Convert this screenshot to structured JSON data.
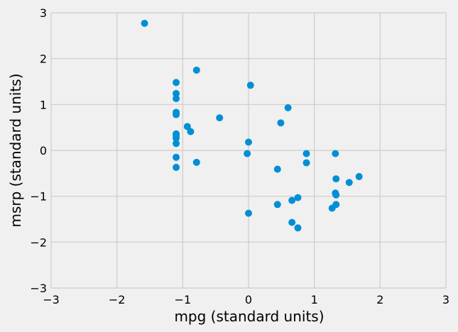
{
  "chart_data": {
    "type": "scatter",
    "title": "",
    "xlabel": "mpg (standard units)",
    "ylabel": "msrp (standard units)",
    "xlim": [
      -3,
      3
    ],
    "ylim": [
      -3,
      3
    ],
    "xticks": [
      -3,
      -2,
      -1,
      0,
      1,
      2,
      3
    ],
    "yticks": [
      -3,
      -2,
      -1,
      0,
      1,
      2,
      3
    ],
    "xtick_labels": [
      "−3",
      "−2",
      "−1",
      "0",
      "1",
      "2",
      "3"
    ],
    "ytick_labels": [
      "−3",
      "−2",
      "−1",
      "0",
      "1",
      "2",
      "3"
    ],
    "grid": true,
    "point_color": "#008fd5",
    "background": "#f0f0f0",
    "grid_color": "#cbcbcb",
    "points": [
      {
        "x": -1.58,
        "y": 2.77
      },
      {
        "x": -0.79,
        "y": 1.75
      },
      {
        "x": -1.1,
        "y": 1.48
      },
      {
        "x": 0.03,
        "y": 1.42
      },
      {
        "x": -1.1,
        "y": 1.24
      },
      {
        "x": -1.1,
        "y": 1.13
      },
      {
        "x": 0.6,
        "y": 0.93
      },
      {
        "x": -1.1,
        "y": 0.83
      },
      {
        "x": -1.1,
        "y": 0.78
      },
      {
        "x": -0.44,
        "y": 0.71
      },
      {
        "x": 0.49,
        "y": 0.6
      },
      {
        "x": -0.93,
        "y": 0.52
      },
      {
        "x": -0.88,
        "y": 0.41
      },
      {
        "x": -1.1,
        "y": 0.36
      },
      {
        "x": -1.1,
        "y": 0.32
      },
      {
        "x": -1.1,
        "y": 0.27
      },
      {
        "x": 0.0,
        "y": 0.18
      },
      {
        "x": -1.1,
        "y": 0.15
      },
      {
        "x": -0.02,
        "y": -0.07
      },
      {
        "x": 0.88,
        "y": -0.07
      },
      {
        "x": 1.32,
        "y": -0.07
      },
      {
        "x": -1.1,
        "y": -0.15
      },
      {
        "x": -0.79,
        "y": -0.26
      },
      {
        "x": 0.88,
        "y": -0.27
      },
      {
        "x": -1.1,
        "y": -0.37
      },
      {
        "x": 0.44,
        "y": -0.41
      },
      {
        "x": 1.68,
        "y": -0.57
      },
      {
        "x": 1.33,
        "y": -0.62
      },
      {
        "x": 1.53,
        "y": -0.7
      },
      {
        "x": 1.32,
        "y": -0.93
      },
      {
        "x": 1.33,
        "y": -0.97
      },
      {
        "x": 0.75,
        "y": -1.03
      },
      {
        "x": 0.66,
        "y": -1.09
      },
      {
        "x": 0.44,
        "y": -1.18
      },
      {
        "x": 1.33,
        "y": -1.18
      },
      {
        "x": 1.27,
        "y": -1.26
      },
      {
        "x": 0.0,
        "y": -1.37
      },
      {
        "x": 0.66,
        "y": -1.57
      },
      {
        "x": 0.75,
        "y": -1.69
      }
    ]
  }
}
